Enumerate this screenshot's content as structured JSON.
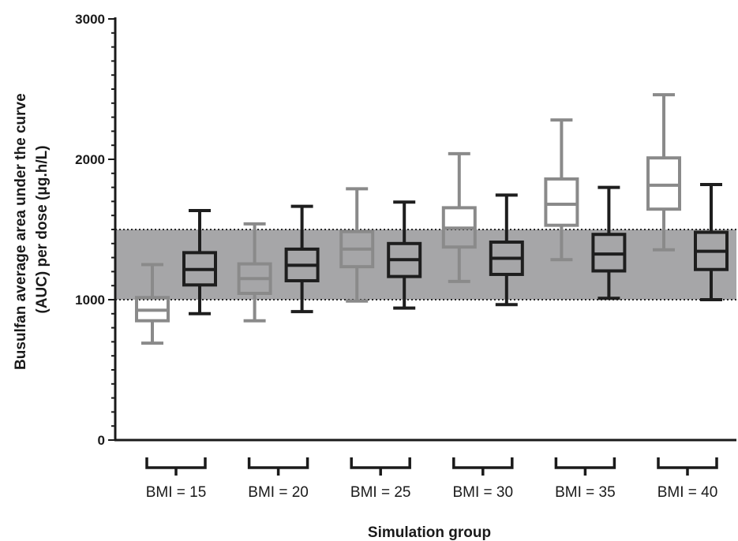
{
  "chart_data": {
    "type": "box",
    "xlabel": "Simulation group",
    "ylabel": [
      "Busulfan average area under the curve",
      "(AUC) per dose (μg.h/L)"
    ],
    "ylim": [
      0,
      3000
    ],
    "yticks": [
      0,
      1000,
      2000,
      3000
    ],
    "y_minor_step": 100,
    "target_range": [
      1000,
      1500
    ],
    "target_color": "#a6a6a8",
    "categories": [
      "BMI = 15",
      "BMI = 20",
      "BMI = 25",
      "BMI = 30",
      "BMI = 35",
      "BMI = 40"
    ],
    "series": [
      {
        "color": "#8a8a8a",
        "boxes": [
          {
            "min": 690,
            "q1": 850,
            "median": 925,
            "q3": 1015,
            "max": 1250
          },
          {
            "min": 850,
            "q1": 1045,
            "median": 1150,
            "q3": 1255,
            "max": 1540
          },
          {
            "min": 990,
            "q1": 1235,
            "median": 1360,
            "q3": 1485,
            "max": 1790
          },
          {
            "min": 1130,
            "q1": 1375,
            "median": 1510,
            "q3": 1655,
            "max": 2040
          },
          {
            "min": 1285,
            "q1": 1530,
            "median": 1680,
            "q3": 1860,
            "max": 2280
          },
          {
            "min": 1355,
            "q1": 1645,
            "median": 1815,
            "q3": 2010,
            "max": 2460
          }
        ]
      },
      {
        "color": "#1e1e1e",
        "boxes": [
          {
            "min": 900,
            "q1": 1105,
            "median": 1215,
            "q3": 1335,
            "max": 1635
          },
          {
            "min": 915,
            "q1": 1135,
            "median": 1245,
            "q3": 1360,
            "max": 1665
          },
          {
            "min": 940,
            "q1": 1165,
            "median": 1285,
            "q3": 1400,
            "max": 1695
          },
          {
            "min": 965,
            "q1": 1180,
            "median": 1295,
            "q3": 1410,
            "max": 1745
          },
          {
            "min": 1010,
            "q1": 1205,
            "median": 1325,
            "q3": 1465,
            "max": 1800
          },
          {
            "min": 1000,
            "q1": 1215,
            "median": 1345,
            "q3": 1480,
            "max": 1820
          }
        ]
      }
    ]
  }
}
